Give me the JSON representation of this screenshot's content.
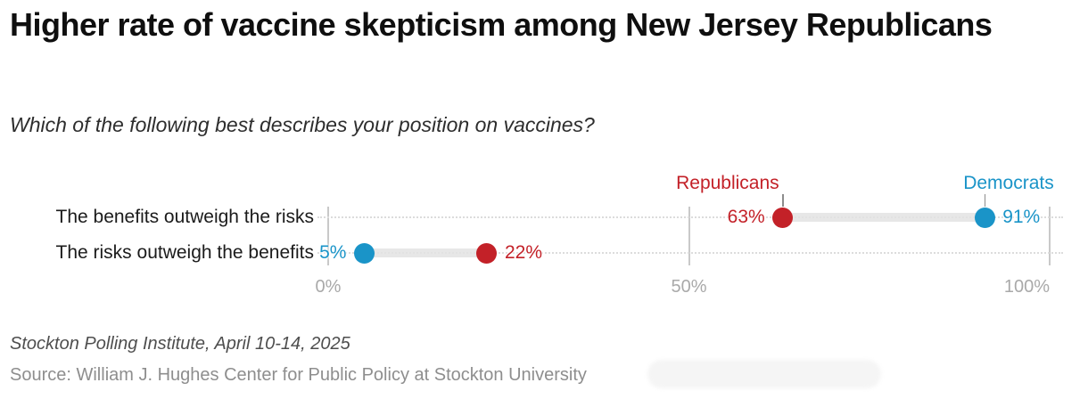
{
  "title": "Higher rate of vaccine skepticism among New Jersey Republicans",
  "subtitle": "Which of the following best describes your position on vaccines?",
  "footer": {
    "methodology": "Stockton Polling Institute, April 10-14, 2025",
    "source": "Source: William J. Hughes Center for Public Policy at Stockton University"
  },
  "chart_data": {
    "type": "scatter",
    "variant": "dumbbell dot plot",
    "categories": [
      "The benefits outweigh the risks",
      "The risks outweigh the benefits"
    ],
    "series": [
      {
        "name": "Republicans",
        "color": "#c32128",
        "values": [
          63,
          22
        ]
      },
      {
        "name": "Democrats",
        "color": "#1a94c8",
        "values": [
          91,
          5
        ]
      }
    ],
    "value_suffix": "%",
    "xlim": [
      0,
      100
    ],
    "x_ticks": [
      {
        "value": 0,
        "label": "0%"
      },
      {
        "value": 50,
        "label": "50%"
      },
      {
        "value": 100,
        "label": "100%"
      }
    ],
    "grid": "vertical gridlines at ticks",
    "legend_position": "series labels above first row pointing at dots",
    "styles": {
      "connector_color": "rgba(227,227,227,0.85)",
      "leader_dot_color": "#dcdcdc",
      "gridline_color": "#c9c9c9",
      "axis_label_color": "#a9a9a9",
      "category_label_color": "#1b1b1b",
      "pointer_tick_color": "#8c8c8c"
    }
  }
}
